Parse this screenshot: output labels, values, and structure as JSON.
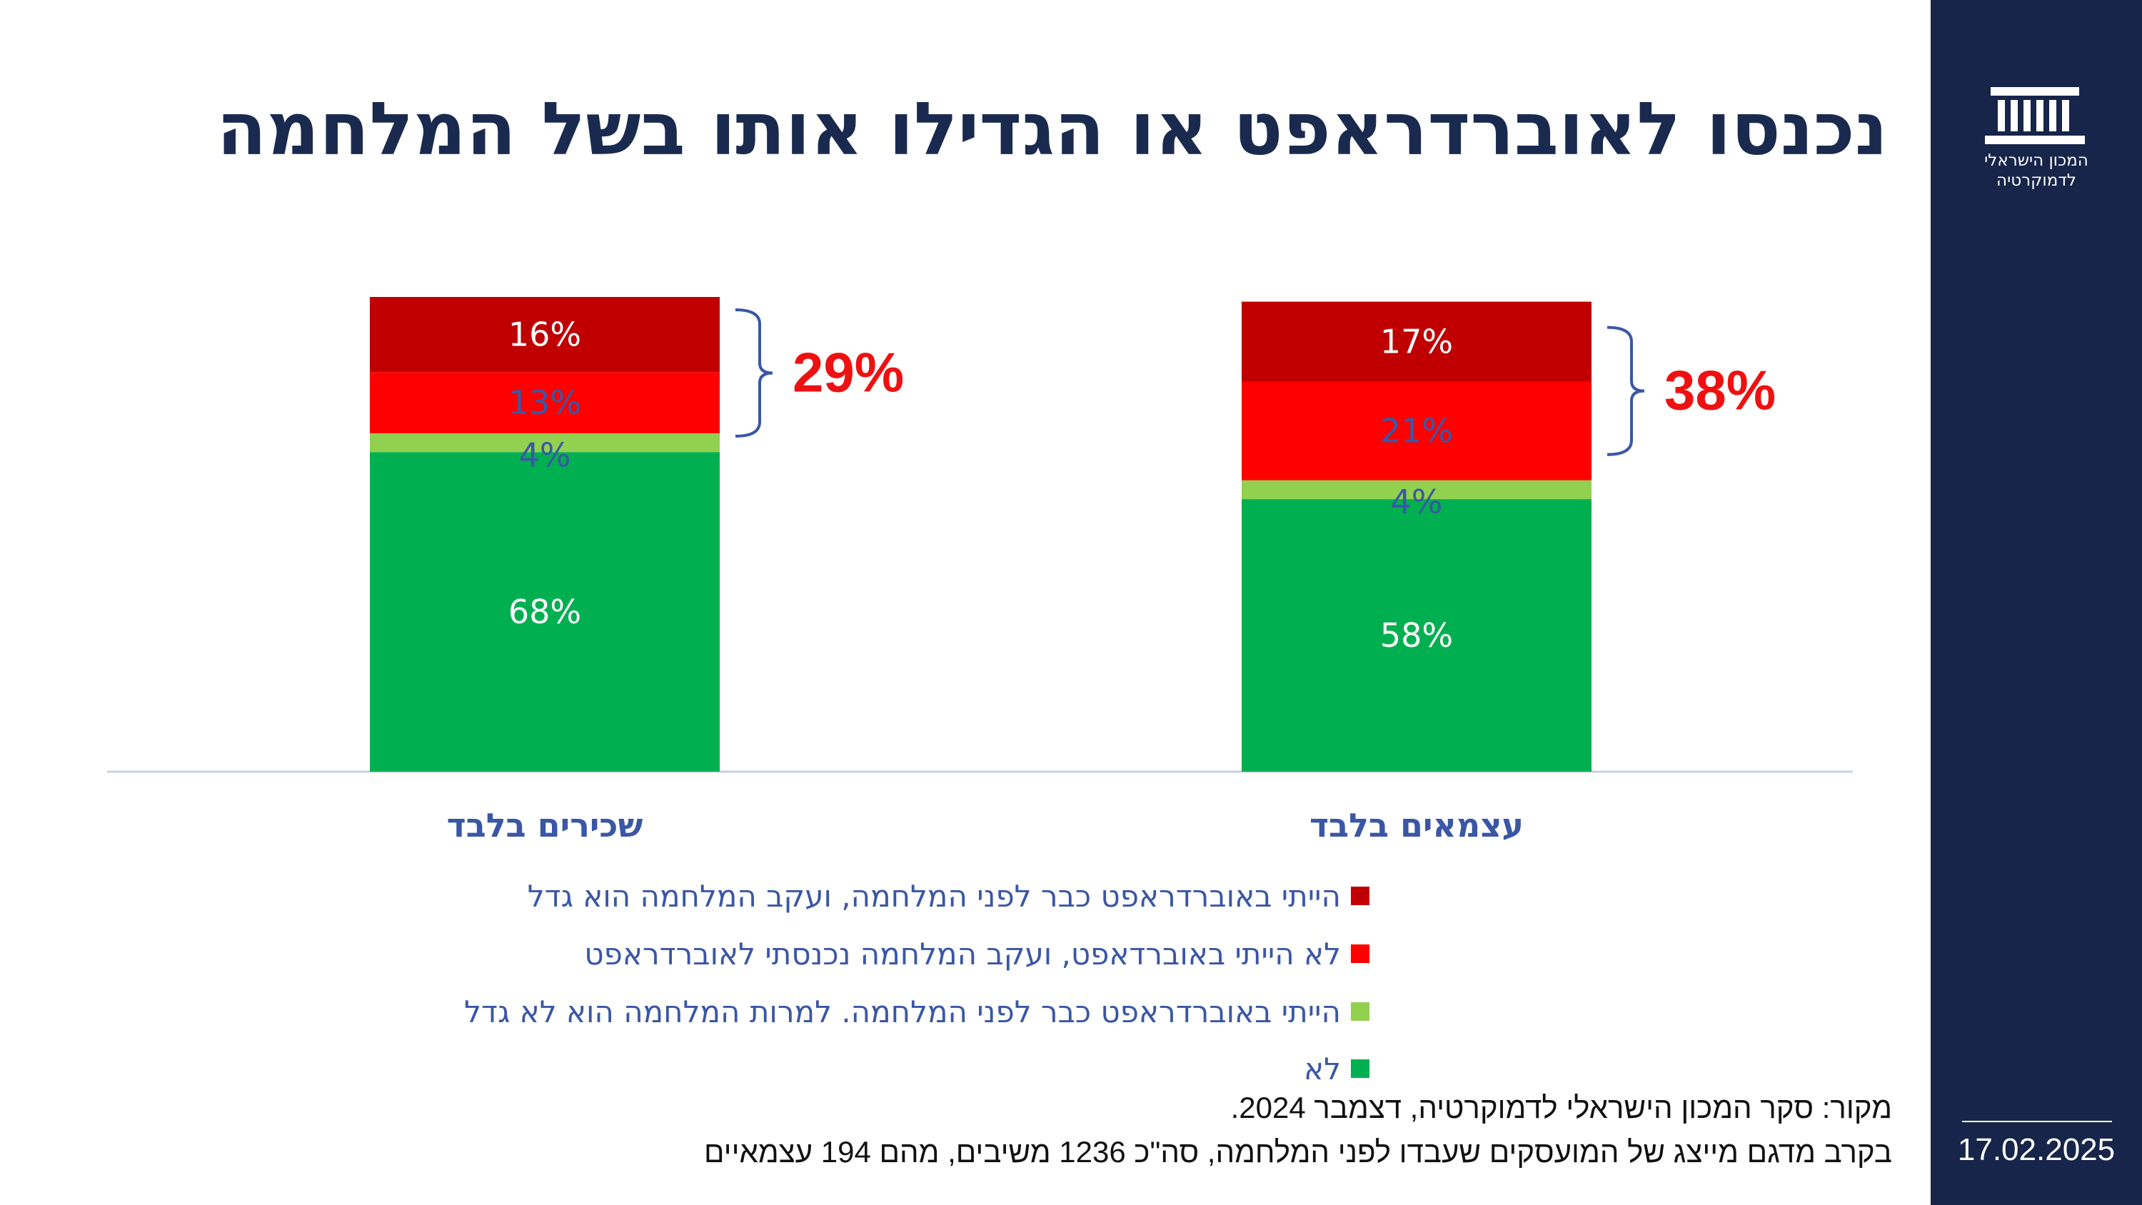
{
  "title": "נכנסו לאוברדראפט או הגדילו אותו בשל המלחמה",
  "logo": {
    "line1": "המכון הישראלי",
    "line2": "לדמוקרטיה"
  },
  "date": "17.02.2025",
  "source": {
    "line1": "מקור: סקר המכון הישראלי לדמוקרטיה, דצמבר 2024.",
    "line2": "בקרב מדגם מייצג של המועסקים שעבדו לפני המלחמה, סה\"כ 1236 משיבים, מהם 194 עצמאיים"
  },
  "colors": {
    "sidebar": "#17254a",
    "title": "#1a2a4f",
    "axis_label": "#3a57a6",
    "bracket": "#3a57a6",
    "callout": "#ee1111"
  },
  "chart_data": {
    "type": "bar",
    "stacked": true,
    "categories": [
      "שכירים בלבד",
      "עצמאים בלבד"
    ],
    "series": [
      {
        "name": "לא",
        "color": "#00b050",
        "values": [
          68,
          58
        ],
        "labels": [
          "68%",
          "58%"
        ],
        "label_color": "#ffffff"
      },
      {
        "name": "הייתי באוברדראפט כבר לפני המלחמה. למרות המלחמה הוא לא גדל",
        "color": "#92d050",
        "values": [
          4,
          4
        ],
        "labels": [
          "4%",
          "4%"
        ],
        "label_color": "#3a57a6"
      },
      {
        "name": "לא הייתי באוברדאפט, ועקב המלחמה נכנסתי לאוברדראפט",
        "color": "#ff0000",
        "values": [
          13,
          21
        ],
        "labels": [
          "13%",
          "21%"
        ],
        "label_color": "#3a57a6"
      },
      {
        "name": "הייתי באוברדראפט כבר לפני המלחמה, ועקב המלחמה הוא גדל",
        "color": "#c00000",
        "values": [
          16,
          17
        ],
        "labels": [
          "16%",
          "17%"
        ],
        "label_color": "#ffffff"
      }
    ],
    "callouts": [
      "29%",
      "38%"
    ],
    "ylim": [
      0,
      101
    ],
    "grid": false,
    "legend": "bottom"
  }
}
